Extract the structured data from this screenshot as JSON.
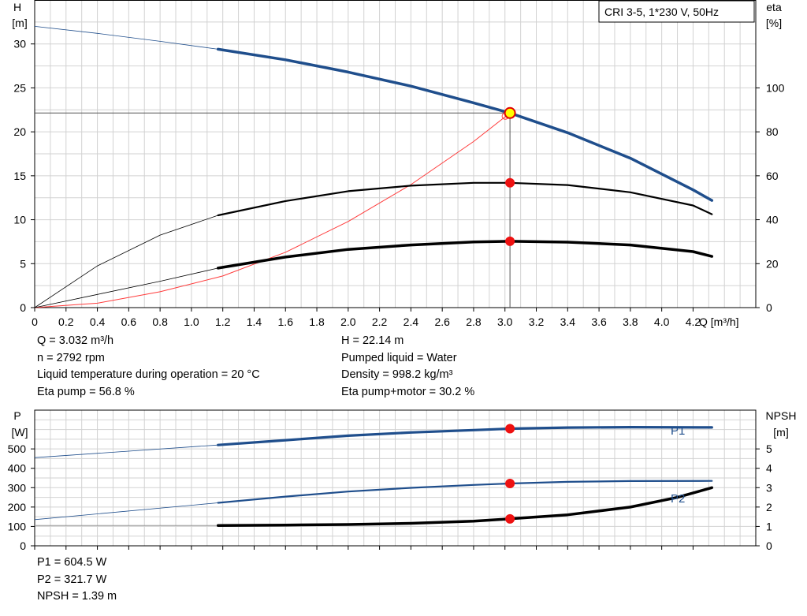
{
  "chart_data": [
    {
      "type": "line",
      "title_box": "CRI 3-5, 1*230 V, 50Hz",
      "xlabel": "Q [m³/h]",
      "x_ticks": [
        "0",
        "0.2",
        "0.4",
        "0.6",
        "0.8",
        "1.0",
        "1.2",
        "1.4",
        "1.6",
        "1.8",
        "2.0",
        "2.2",
        "2.4",
        "2.6",
        "2.8",
        "3.0",
        "3.2",
        "3.4",
        "3.6",
        "3.8",
        "4.0",
        "4.2"
      ],
      "xlim": [
        0,
        4.6
      ],
      "ylabel_left": [
        "H",
        "[m]"
      ],
      "ylabel_right": [
        "eta",
        "[%]"
      ],
      "ylim_left": [
        0,
        35
      ],
      "ylim_right": [
        0,
        140
      ],
      "y_ticks_left": [
        "0",
        "5",
        "10",
        "15",
        "20",
        "25",
        "30"
      ],
      "y_ticks_right": [
        "0",
        "20",
        "40",
        "60",
        "80",
        "100"
      ],
      "grid": true,
      "series": [
        {
          "color": "#1f4e8c",
          "axis": "left",
          "style": "head",
          "x": [
            0,
            0.4,
            0.8,
            1.17,
            1.6,
            2.0,
            2.4,
            2.8,
            3.032,
            3.4,
            3.8,
            4.2,
            4.32
          ],
          "y": [
            32.0,
            31.2,
            30.3,
            29.4,
            28.2,
            26.8,
            25.2,
            23.3,
            22.14,
            19.9,
            17.0,
            13.4,
            12.2
          ]
        },
        {
          "color": "#000000",
          "axis": "right",
          "style": "thin",
          "x": [
            0,
            0.4,
            0.8,
            1.17,
            1.6,
            2.0,
            2.4,
            2.8,
            3.032,
            3.4,
            3.8,
            4.2,
            4.32
          ],
          "y": [
            0,
            19,
            33,
            42,
            48.5,
            53,
            55.5,
            56.8,
            56.8,
            55.8,
            52.5,
            46.5,
            42.5
          ]
        },
        {
          "color": "#000000",
          "axis": "right",
          "style": "thick",
          "x": [
            0,
            0.4,
            0.8,
            1.17,
            1.6,
            2.0,
            2.4,
            2.8,
            3.032,
            3.4,
            3.8,
            4.2,
            4.32
          ],
          "y": [
            0,
            6,
            12,
            18,
            23,
            26.5,
            28.5,
            29.9,
            30.2,
            29.8,
            28.5,
            25.5,
            23.3
          ]
        },
        {
          "color": "#ff3b3b",
          "axis": "left",
          "style": "system",
          "x": [
            0,
            0.4,
            0.8,
            1.2,
            1.6,
            2.0,
            2.4,
            2.8,
            3.032
          ],
          "y": [
            0,
            0.5,
            1.8,
            3.6,
            6.3,
            9.8,
            14.0,
            18.9,
            22.14
          ]
        }
      ],
      "operating_point": {
        "x": 3.032,
        "y": 22.14
      },
      "point_markers": [
        {
          "x": 3.032,
          "y": 56.8,
          "axis": "right"
        },
        {
          "x": 3.032,
          "y": 30.2,
          "axis": "right"
        }
      ]
    },
    {
      "type": "line",
      "ylabel_left": [
        "P",
        "[W]"
      ],
      "ylabel_right": [
        "NPSH",
        "[m]"
      ],
      "xlim": [
        0,
        4.6
      ],
      "ylim_left": [
        0,
        700
      ],
      "ylim_right": [
        0,
        7
      ],
      "y_ticks_left": [
        "0",
        "100",
        "200",
        "300",
        "400",
        "500"
      ],
      "y_ticks_right": [
        "0",
        "1",
        "2",
        "3",
        "4",
        "5"
      ],
      "grid": true,
      "series": [
        {
          "name": "P1",
          "color": "#1f4e8c",
          "axis": "left",
          "style": "thick",
          "x": [
            0,
            1.17,
            1.6,
            2.0,
            2.4,
            2.8,
            3.032,
            3.4,
            3.8,
            4.32
          ],
          "y": [
            455,
            520,
            545,
            568,
            585,
            597,
            604.5,
            610,
            612,
            611
          ]
        },
        {
          "name": "P2",
          "color": "#1f4e8c",
          "axis": "left",
          "style": "mid",
          "x": [
            0,
            1.17,
            1.6,
            2.0,
            2.4,
            2.8,
            3.032,
            3.4,
            3.8,
            4.32
          ],
          "y": [
            135,
            222,
            254,
            280,
            299,
            314,
            321.7,
            330,
            334,
            335
          ]
        },
        {
          "name": "NPSH",
          "color": "#000000",
          "axis": "right",
          "style": "npsh",
          "x": [
            0,
            1.17,
            1.6,
            2.0,
            2.4,
            2.8,
            3.032,
            3.4,
            3.8,
            4.1,
            4.32
          ],
          "y": [
            1.05,
            1.05,
            1.07,
            1.1,
            1.16,
            1.27,
            1.39,
            1.6,
            2.0,
            2.5,
            3.0
          ]
        }
      ],
      "point_markers": [
        {
          "x": 3.032,
          "y": 604.5,
          "axis": "left"
        },
        {
          "x": 3.032,
          "y": 321.7,
          "axis": "left"
        },
        {
          "x": 3.032,
          "y": 1.39,
          "axis": "right"
        }
      ]
    }
  ],
  "info_top_left": [
    "Q = 3.032 m³/h",
    "n = 2792 rpm",
    "Liquid temperature during operation = 20 °C",
    "Eta pump = 56.8 %"
  ],
  "info_top_right": [
    "H = 22.14 m",
    "Pumped liquid = Water",
    "Density = 998.2 kg/m³",
    "Eta pump+motor = 30.2 %"
  ],
  "info_bottom": [
    "P1 = 604.5 W",
    "P2 = 321.7 W",
    "NPSH = 1.39 m"
  ]
}
